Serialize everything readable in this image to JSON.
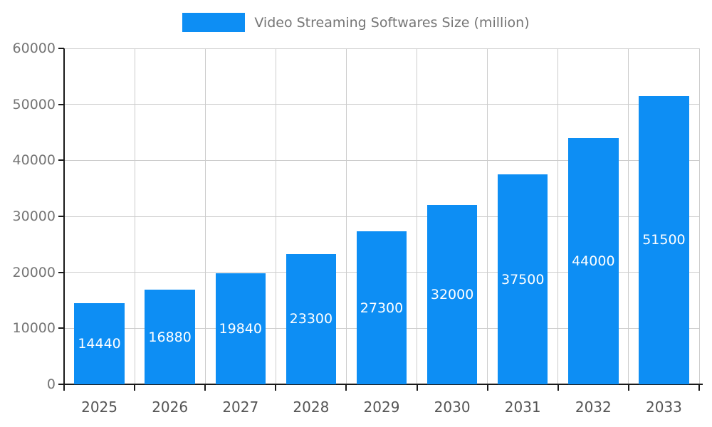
{
  "legend": {
    "label": "Video Streaming Softwares Size (million)"
  },
  "colors": {
    "bar": "#0d8ef4",
    "grid": "#cccccc",
    "axis": "#1a1a1a",
    "tick_label": "#757575",
    "x_label": "#555555",
    "bar_label": "#ffffff",
    "legend_text": "#757575",
    "background": "#ffffff"
  },
  "chart_data": {
    "type": "bar",
    "title": "Video Streaming Softwares Size (million)",
    "categories": [
      "2025",
      "2026",
      "2027",
      "2028",
      "2029",
      "2030",
      "2031",
      "2032",
      "2033"
    ],
    "values": [
      14440,
      16880,
      19840,
      23300,
      27300,
      32000,
      37500,
      44000,
      51500
    ],
    "xlabel": "",
    "ylabel": "",
    "ylim": [
      0,
      60000
    ],
    "y_ticks": [
      0,
      10000,
      20000,
      30000,
      40000,
      50000,
      60000
    ],
    "grid": true,
    "legend_position": "top",
    "data_labels": "inside-center-white"
  }
}
